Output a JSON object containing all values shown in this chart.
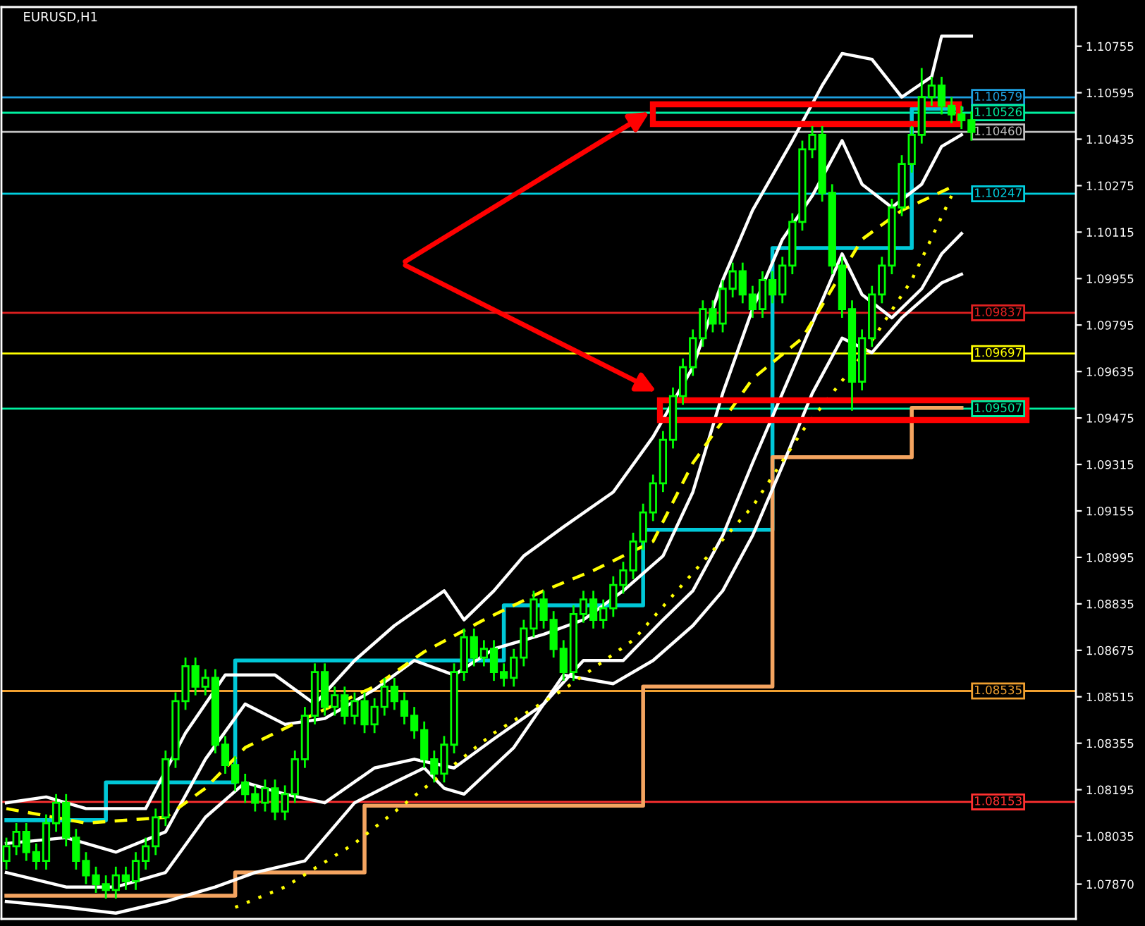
{
  "chart_data": {
    "type": "candlestick",
    "title": "EURUSD,H1",
    "color": "#00ff00",
    "categories": [
      null,
      null,
      null,
      null,
      null,
      null,
      null,
      null,
      null,
      null,
      null,
      null,
      null,
      null,
      null,
      null,
      null,
      null,
      null,
      null,
      null,
      null,
      null,
      null,
      null,
      null,
      null,
      null,
      null,
      null,
      null,
      null,
      null,
      null,
      null,
      null,
      null,
      null,
      null,
      null,
      null,
      null,
      null,
      null,
      null,
      null,
      null,
      null,
      null,
      null,
      null,
      null,
      null,
      null,
      null,
      null,
      null,
      null,
      null,
      null,
      null,
      null,
      null,
      null,
      null,
      null,
      null,
      null,
      null,
      null,
      null,
      null,
      null,
      null,
      null,
      null,
      null,
      null,
      null,
      null,
      null,
      null,
      null,
      null,
      null,
      null,
      null,
      null,
      null,
      null,
      null,
      null,
      null,
      null,
      null,
      null,
      null,
      null,
      null,
      null,
      null,
      null,
      null,
      null,
      null,
      null,
      null,
      null
    ],
    "ohlc": [
      [
        1.0795,
        1.0803,
        1.0792,
        1.08
      ],
      [
        1.08,
        1.0808,
        1.0797,
        1.0805
      ],
      [
        1.0805,
        1.0808,
        1.0795,
        1.0798
      ],
      [
        1.0798,
        1.0801,
        1.0792,
        1.0795
      ],
      [
        1.0795,
        1.0811,
        1.0792,
        1.0808
      ],
      [
        1.0808,
        1.0818,
        1.0805,
        1.0815
      ],
      [
        1.0815,
        1.0818,
        1.08,
        1.0803
      ],
      [
        1.0803,
        1.0806,
        1.0792,
        1.0795
      ],
      [
        1.0795,
        1.0798,
        1.0787,
        1.079
      ],
      [
        1.079,
        1.0793,
        1.0784,
        1.0787
      ],
      [
        1.0787,
        1.079,
        1.0782,
        1.0785
      ],
      [
        1.0785,
        1.0793,
        1.0782,
        1.079
      ],
      [
        1.079,
        1.0793,
        1.0785,
        1.0788
      ],
      [
        1.0788,
        1.0798,
        1.0785,
        1.0795
      ],
      [
        1.0795,
        1.0803,
        1.0792,
        1.08
      ],
      [
        1.08,
        1.0813,
        1.0797,
        1.081
      ],
      [
        1.081,
        1.0833,
        1.0807,
        1.083
      ],
      [
        1.083,
        1.0853,
        1.0827,
        1.085
      ],
      [
        1.085,
        1.0865,
        1.0847,
        1.0862
      ],
      [
        1.0862,
        1.0865,
        1.0852,
        1.0855
      ],
      [
        1.0855,
        1.0861,
        1.0852,
        1.0858
      ],
      [
        1.0858,
        1.0861,
        1.0832,
        1.0835
      ],
      [
        1.0835,
        1.0838,
        1.0825,
        1.0828
      ],
      [
        1.0828,
        1.0831,
        1.0819,
        1.0822
      ],
      [
        1.0822,
        1.0825,
        1.0815,
        1.0818
      ],
      [
        1.0818,
        1.0821,
        1.0812,
        1.0815
      ],
      [
        1.0815,
        1.0823,
        1.0812,
        1.082
      ],
      [
        1.082,
        1.0823,
        1.0809,
        1.0812
      ],
      [
        1.0812,
        1.0821,
        1.0809,
        1.0818
      ],
      [
        1.0818,
        1.0833,
        1.0815,
        1.083
      ],
      [
        1.083,
        1.0848,
        1.0827,
        1.0845
      ],
      [
        1.0845,
        1.0863,
        1.0842,
        1.086
      ],
      [
        1.086,
        1.0863,
        1.0845,
        1.0848
      ],
      [
        1.0848,
        1.0855,
        1.0845,
        1.0852
      ],
      [
        1.0852,
        1.0855,
        1.0842,
        1.0845
      ],
      [
        1.0845,
        1.0853,
        1.0842,
        1.085
      ],
      [
        1.085,
        1.0853,
        1.0839,
        1.0842
      ],
      [
        1.0842,
        1.0851,
        1.0839,
        1.0848
      ],
      [
        1.0848,
        1.0858,
        1.0845,
        1.0855
      ],
      [
        1.0855,
        1.0858,
        1.0847,
        1.085
      ],
      [
        1.085,
        1.0853,
        1.0842,
        1.0845
      ],
      [
        1.0845,
        1.0848,
        1.0837,
        1.084
      ],
      [
        1.084,
        1.0843,
        1.0827,
        1.083
      ],
      [
        1.083,
        1.0833,
        1.0822,
        1.0825
      ],
      [
        1.0825,
        1.0838,
        1.0822,
        1.0835
      ],
      [
        1.0835,
        1.0863,
        1.0832,
        1.086
      ],
      [
        1.086,
        1.0875,
        1.0857,
        1.0872
      ],
      [
        1.0872,
        1.0875,
        1.0862,
        1.0865
      ],
      [
        1.0865,
        1.0871,
        1.0862,
        1.0868
      ],
      [
        1.0868,
        1.0871,
        1.0857,
        1.086
      ],
      [
        1.086,
        1.0863,
        1.0855,
        1.0858
      ],
      [
        1.0858,
        1.0868,
        1.0855,
        1.0865
      ],
      [
        1.0865,
        1.0878,
        1.0862,
        1.0875
      ],
      [
        1.0875,
        1.0888,
        1.0872,
        1.0885
      ],
      [
        1.0885,
        1.0888,
        1.0875,
        1.0878
      ],
      [
        1.0878,
        1.0881,
        1.0865,
        1.0868
      ],
      [
        1.0868,
        1.0871,
        1.0857,
        1.086
      ],
      [
        1.086,
        1.0883,
        1.0857,
        1.088
      ],
      [
        1.088,
        1.0888,
        1.0877,
        1.0885
      ],
      [
        1.0885,
        1.0888,
        1.0875,
        1.0878
      ],
      [
        1.0878,
        1.0885,
        1.0875,
        1.0882
      ],
      [
        1.0882,
        1.0893,
        1.0879,
        1.089
      ],
      [
        1.089,
        1.0898,
        1.0887,
        1.0895
      ],
      [
        1.0895,
        1.0908,
        1.0892,
        1.0905
      ],
      [
        1.0905,
        1.0918,
        1.0902,
        1.0915
      ],
      [
        1.0915,
        1.0928,
        1.0912,
        1.0925
      ],
      [
        1.0925,
        1.0943,
        1.0922,
        1.094
      ],
      [
        1.094,
        1.0958,
        1.0937,
        1.0955
      ],
      [
        1.0955,
        1.0968,
        1.0952,
        1.0965
      ],
      [
        1.0965,
        1.0978,
        1.0962,
        1.0975
      ],
      [
        1.0975,
        1.0988,
        1.0972,
        1.0985
      ],
      [
        1.0985,
        1.0988,
        1.0977,
        1.098
      ],
      [
        1.098,
        1.0995,
        1.0977,
        1.0992
      ],
      [
        1.0992,
        1.1001,
        1.0989,
        1.0998
      ],
      [
        1.0998,
        1.1001,
        1.0987,
        1.099
      ],
      [
        1.099,
        1.0993,
        1.0982,
        1.0985
      ],
      [
        1.0985,
        1.0998,
        1.0982,
        1.0995
      ],
      [
        1.0995,
        1.0998,
        1.0987,
        1.099
      ],
      [
        1.099,
        1.1003,
        1.0987,
        1.1
      ],
      [
        1.1,
        1.1018,
        1.0997,
        1.1015
      ],
      [
        1.1015,
        1.1043,
        1.1012,
        1.104
      ],
      [
        1.104,
        1.1048,
        1.1037,
        1.1045
      ],
      [
        1.1045,
        1.1048,
        1.1022,
        1.1025
      ],
      [
        1.1025,
        1.1028,
        1.0997,
        1.1
      ],
      [
        1.1,
        1.1003,
        1.0982,
        1.0985
      ],
      [
        1.0985,
        1.0988,
        1.095,
        1.096
      ],
      [
        1.096,
        1.0978,
        1.0957,
        1.0975
      ],
      [
        1.0975,
        1.0993,
        1.0972,
        1.099
      ],
      [
        1.099,
        1.1003,
        1.0987,
        1.1
      ],
      [
        1.1,
        1.1023,
        1.0997,
        1.102
      ],
      [
        1.102,
        1.1038,
        1.1017,
        1.1035
      ],
      [
        1.1035,
        1.1048,
        1.1032,
        1.1045
      ],
      [
        1.1045,
        1.1068,
        1.1042,
        1.1058
      ],
      [
        1.1058,
        1.1065,
        1.1055,
        1.1062
      ],
      [
        1.1062,
        1.1065,
        1.1052,
        1.1055
      ],
      [
        1.1055,
        1.1058,
        1.1049,
        1.1052
      ],
      [
        1.1052,
        1.1055,
        1.1047,
        1.105
      ],
      [
        1.105,
        1.1053,
        1.1043,
        1.1046
      ],
      null,
      null,
      null,
      null,
      null,
      null,
      null,
      null,
      null,
      null
    ],
    "series": [
      {
        "type": "line",
        "color": "#ffffff",
        "line_style": "solid",
        "values": [
          1.0815,
          null,
          null,
          null,
          1.0817,
          null,
          null,
          null,
          1.0813,
          null,
          null,
          null,
          null,
          null,
          1.0813,
          null,
          null,
          null,
          1.0839,
          null,
          null,
          null,
          1.0859,
          null,
          null,
          null,
          null,
          1.0859,
          null,
          null,
          null,
          1.0849,
          null,
          null,
          null,
          1.0864,
          null,
          null,
          null,
          1.0876,
          null,
          null,
          null,
          null,
          1.0888,
          null,
          1.0878,
          null,
          null,
          1.0888,
          null,
          null,
          1.09,
          null,
          null,
          null,
          1.091,
          null,
          null,
          null,
          null,
          1.0922,
          null,
          null,
          null,
          1.0941,
          null,
          null,
          null,
          1.0965,
          null,
          null,
          1.0995,
          null,
          null,
          1.1019,
          null,
          null,
          null,
          1.1043,
          null,
          null,
          1.1062,
          null,
          1.1073,
          null,
          null,
          1.1071,
          null,
          null,
          1.1058,
          null,
          null,
          1.1065,
          1.1079,
          null,
          null,
          1.1079,
          null,
          null,
          null,
          null,
          null,
          null,
          null,
          null,
          null,
          null
        ]
      },
      {
        "type": "line",
        "color": "#ffffff",
        "line_style": "solid",
        "values": [
          1.0801,
          null,
          null,
          null,
          null,
          null,
          1.0803,
          null,
          null,
          null,
          null,
          1.0798,
          null,
          null,
          null,
          null,
          1.0805,
          null,
          null,
          null,
          1.083,
          null,
          null,
          null,
          1.0849,
          null,
          null,
          null,
          1.0842,
          null,
          null,
          null,
          1.0844,
          null,
          null,
          null,
          null,
          1.0854,
          null,
          null,
          null,
          1.0864,
          null,
          null,
          null,
          1.0859,
          null,
          null,
          null,
          1.0868,
          null,
          null,
          null,
          null,
          1.0873,
          null,
          null,
          null,
          1.0878,
          null,
          null,
          null,
          1.0888,
          null,
          null,
          null,
          1.09,
          null,
          null,
          1.0922,
          null,
          null,
          1.0956,
          null,
          null,
          1.0985,
          null,
          null,
          1.1009,
          null,
          null,
          1.1024,
          null,
          null,
          1.1043,
          null,
          1.1028,
          null,
          null,
          1.102,
          null,
          null,
          1.1028,
          null,
          1.1041,
          null,
          1.1045,
          null,
          null,
          null,
          null,
          null,
          null,
          null,
          null,
          null,
          null,
          null
        ]
      },
      {
        "type": "line",
        "color": "#ffffff",
        "line_style": "solid",
        "values": [
          1.0791,
          null,
          null,
          null,
          null,
          null,
          1.0786,
          null,
          null,
          null,
          null,
          1.0786,
          null,
          null,
          null,
          null,
          1.0791,
          null,
          null,
          null,
          1.081,
          null,
          null,
          null,
          1.0822,
          null,
          null,
          null,
          1.0818,
          null,
          null,
          null,
          1.0815,
          null,
          null,
          null,
          null,
          1.0827,
          null,
          null,
          null,
          1.083,
          null,
          null,
          null,
          1.0827,
          null,
          null,
          null,
          1.0837,
          null,
          null,
          null,
          null,
          1.0849,
          null,
          null,
          null,
          1.0864,
          null,
          null,
          null,
          1.0864,
          null,
          null,
          null,
          1.0878,
          null,
          null,
          1.0888,
          null,
          null,
          1.0907,
          null,
          null,
          1.0932,
          null,
          null,
          1.0956,
          null,
          null,
          1.098,
          null,
          null,
          1.1004,
          null,
          1.099,
          null,
          null,
          1.0982,
          null,
          null,
          1.0992,
          null,
          1.1004,
          null,
          1.1011,
          null,
          null,
          null,
          null,
          null,
          null,
          null,
          null,
          null,
          null,
          null
        ]
      },
      {
        "type": "line",
        "color": "#ffffff",
        "line_style": "solid",
        "values": [
          1.0781,
          null,
          null,
          null,
          null,
          null,
          1.0779,
          null,
          null,
          null,
          null,
          1.0777,
          null,
          null,
          null,
          null,
          1.0781,
          null,
          null,
          null,
          null,
          1.0786,
          null,
          null,
          null,
          1.0791,
          null,
          null,
          null,
          null,
          1.0795,
          null,
          1.0803,
          null,
          null,
          1.0815,
          null,
          null,
          null,
          1.0822,
          null,
          null,
          1.0827,
          null,
          1.082,
          null,
          1.0818,
          null,
          null,
          null,
          null,
          1.0834,
          null,
          null,
          null,
          null,
          1.0859,
          null,
          null,
          null,
          null,
          1.0856,
          null,
          null,
          null,
          1.0864,
          null,
          null,
          null,
          1.0876,
          null,
          null,
          1.0888,
          null,
          null,
          1.0907,
          null,
          null,
          1.0931,
          null,
          null,
          1.0956,
          null,
          null,
          1.0975,
          null,
          null,
          1.097,
          null,
          null,
          1.0982,
          null,
          null,
          null,
          1.0994,
          null,
          1.0997,
          null,
          null,
          null,
          null,
          null,
          null,
          null,
          null,
          null,
          null,
          null
        ]
      },
      {
        "type": "line",
        "color": "#ffff00",
        "line_style": "dashed",
        "values": [
          1.0813,
          null,
          null,
          null,
          null,
          null,
          null,
          null,
          1.0808,
          null,
          null,
          null,
          null,
          null,
          null,
          null,
          1.081,
          null,
          null,
          null,
          1.082,
          null,
          null,
          null,
          1.0834,
          null,
          null,
          null,
          null,
          null,
          1.0844,
          null,
          null,
          null,
          null,
          null,
          null,
          1.0855,
          null,
          null,
          null,
          null,
          1.0867,
          null,
          null,
          null,
          null,
          null,
          1.0878,
          null,
          null,
          null,
          null,
          null,
          1.0888,
          null,
          null,
          null,
          null,
          1.0895,
          null,
          null,
          null,
          null,
          null,
          1.0905,
          null,
          null,
          null,
          1.0932,
          null,
          null,
          null,
          null,
          null,
          1.0961,
          null,
          null,
          null,
          null,
          1.0975,
          null,
          null,
          null,
          null,
          null,
          1.1009,
          null,
          null,
          null,
          1.1019,
          null,
          null,
          null,
          null,
          1.1027,
          null,
          null,
          null,
          null,
          null,
          null,
          null,
          null,
          null,
          null,
          null,
          null
        ]
      },
      {
        "type": "line",
        "color": "#ffff00",
        "line_style": "dotted",
        "values": [
          null,
          null,
          null,
          null,
          null,
          null,
          null,
          null,
          null,
          null,
          null,
          null,
          null,
          null,
          null,
          null,
          null,
          null,
          null,
          null,
          null,
          null,
          null,
          1.0779,
          null,
          null,
          null,
          null,
          1.0786,
          null,
          null,
          null,
          null,
          null,
          null,
          1.0801,
          null,
          null,
          null,
          null,
          null,
          null,
          1.082,
          null,
          null,
          null,
          null,
          null,
          null,
          1.0839,
          null,
          null,
          null,
          null,
          null,
          null,
          1.0854,
          null,
          null,
          null,
          null,
          null,
          null,
          1.0871,
          null,
          null,
          null,
          null,
          null,
          null,
          1.0898,
          null,
          null,
          null,
          null,
          1.0917,
          null,
          null,
          null,
          null,
          1.0943,
          null,
          null,
          null,
          null,
          null,
          1.0969,
          null,
          null,
          null,
          null,
          1.0995,
          null,
          null,
          null,
          1.1024,
          null,
          null,
          null,
          null,
          null,
          null,
          null,
          null,
          null,
          null,
          null,
          null
        ]
      },
      {
        "type": "step",
        "color": "#00c8d8",
        "line_style": "solid",
        "values": [
          1.0809,
          null,
          null,
          null,
          null,
          null,
          null,
          null,
          null,
          null,
          1.0822,
          null,
          null,
          null,
          null,
          null,
          null,
          null,
          null,
          null,
          null,
          null,
          null,
          1.0864,
          null,
          null,
          null,
          null,
          null,
          null,
          null,
          null,
          null,
          null,
          null,
          null,
          null,
          null,
          null,
          null,
          null,
          null,
          null,
          null,
          null,
          null,
          null,
          null,
          null,
          null,
          1.0883,
          null,
          null,
          null,
          null,
          null,
          null,
          null,
          null,
          null,
          null,
          null,
          null,
          null,
          1.0909,
          null,
          null,
          null,
          null,
          null,
          null,
          null,
          null,
          null,
          null,
          null,
          null,
          1.1006,
          null,
          null,
          null,
          null,
          null,
          null,
          null,
          null,
          null,
          null,
          null,
          null,
          null,
          1.1054,
          null,
          null,
          null,
          null,
          1.1054,
          null,
          null,
          null,
          null,
          null,
          null,
          null,
          null,
          null,
          null,
          null
        ]
      },
      {
        "type": "step",
        "color": "#f4a460",
        "line_style": "solid",
        "values": [
          1.0783,
          null,
          null,
          null,
          null,
          null,
          null,
          null,
          null,
          null,
          null,
          null,
          null,
          null,
          null,
          null,
          null,
          null,
          null,
          null,
          null,
          null,
          null,
          1.0791,
          null,
          null,
          null,
          null,
          null,
          null,
          null,
          null,
          null,
          null,
          null,
          null,
          1.0814,
          null,
          null,
          null,
          null,
          null,
          null,
          null,
          null,
          null,
          null,
          null,
          null,
          null,
          null,
          null,
          null,
          null,
          null,
          null,
          null,
          null,
          null,
          null,
          null,
          null,
          null,
          null,
          1.0855,
          null,
          null,
          null,
          null,
          null,
          null,
          null,
          null,
          null,
          null,
          null,
          null,
          1.0934,
          null,
          null,
          null,
          null,
          null,
          null,
          null,
          null,
          null,
          null,
          null,
          null,
          null,
          1.0951,
          null,
          null,
          null,
          null,
          1.0951,
          null,
          null,
          null,
          null,
          null,
          null,
          null,
          null,
          null,
          null,
          null
        ]
      }
    ],
    "ref_lines": [
      {
        "axis": "y",
        "value": 1.10579,
        "label": "1.10579",
        "color": "#1ea0e0"
      },
      {
        "axis": "y",
        "value": 1.10526,
        "label": "1.10526",
        "color": "#00f0a0"
      },
      {
        "axis": "y",
        "value": 1.1046,
        "label": "1.10460",
        "color": "#c0c0c0"
      },
      {
        "axis": "y",
        "value": 1.10247,
        "label": "1.10247",
        "color": "#00d0e0"
      },
      {
        "axis": "y",
        "value": 1.09837,
        "label": "1.09837",
        "color": "#e02020"
      },
      {
        "axis": "y",
        "value": 1.09697,
        "label": "1.09697",
        "color": "#ffff00"
      },
      {
        "axis": "y",
        "value": 1.09507,
        "label": "1.09507",
        "color": "#00f0a0"
      },
      {
        "axis": "y",
        "value": 1.08535,
        "label": "1.08535",
        "color": "#f0a030"
      },
      {
        "axis": "y",
        "value": 1.08153,
        "label": "1.08153",
        "color": "#ff3030"
      }
    ],
    "ylim": [
      1.0775,
      1.1089
    ],
    "yticks": [
      1.10755,
      1.10595,
      1.10435,
      1.10275,
      1.10115,
      1.09955,
      1.09795,
      1.09635,
      1.09475,
      1.09315,
      1.09155,
      1.08995,
      1.08835,
      1.08675,
      1.08515,
      1.08355,
      1.08195,
      1.08035,
      {
        "value": 1.0787,
        "label": "1.07870"
      }
    ],
    "tick_labels": "y",
    "grid": false,
    "legend": false
  }
}
